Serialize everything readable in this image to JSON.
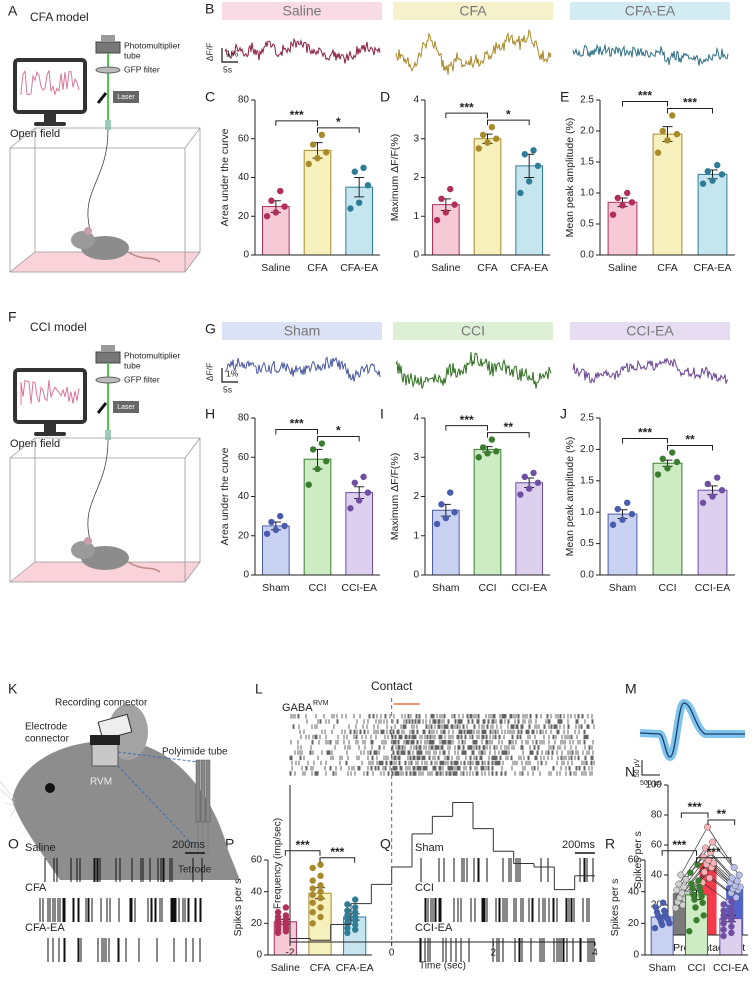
{
  "panel_letters": [
    "A",
    "B",
    "C",
    "D",
    "E",
    "F",
    "G",
    "H",
    "I",
    "J",
    "K",
    "L",
    "M",
    "N",
    "O",
    "P",
    "Q",
    "R"
  ],
  "diagrams": {
    "A": {
      "title": "CFA model",
      "pmt": [
        "Photomultiplier",
        "tube"
      ],
      "filter": "GFP filter",
      "laser": "Laser",
      "arena": "Open field"
    },
    "F": {
      "title": "CCI model",
      "pmt": [
        "Photomultiplier",
        "tube"
      ],
      "filter": "GFP filter",
      "laser": "Laser",
      "arena": "Open field"
    },
    "K": {
      "recording": "Recording connector",
      "electrode": [
        "Electrode",
        "connector"
      ],
      "tube": "Polyimide tube",
      "region": "RVM",
      "tetrode": "Tetrode"
    },
    "M": {
      "amplitude": "50 μV",
      "duration": "500 μs"
    }
  },
  "traces": {
    "B": {
      "ylabel": "ΔF/F",
      "scale_y": "1%",
      "scale_x": "5s",
      "groups": [
        {
          "name": "Saline",
          "color": "#8b1d3f",
          "band": "#f8dbe5"
        },
        {
          "name": "CFA",
          "color": "#a8892a",
          "band": "#f4f1cb"
        },
        {
          "name": "CFA-EA",
          "color": "#2f6f86",
          "band": "#d3ecf3"
        }
      ]
    },
    "G": {
      "ylabel": "ΔF/F",
      "scale_y": "1%",
      "scale_x": "5s",
      "groups": [
        {
          "name": "Sham",
          "color": "#4a58a0",
          "band": "#dce2f5"
        },
        {
          "name": "CCI",
          "color": "#2f6e1f",
          "band": "#ddf0d5"
        },
        {
          "name": "CCI-EA",
          "color": "#6b4596",
          "band": "#e6ddf3"
        }
      ]
    }
  },
  "rasters": {
    "O": {
      "rows": [
        "Saline",
        "CFA",
        "CFA-EA"
      ],
      "scale": "200ms"
    },
    "Q": {
      "rows": [
        "Sham",
        "CCI",
        "CCI-EA"
      ],
      "scale": "200ms"
    }
  },
  "chart_data": [
    {
      "type": "bar",
      "ylabel": "Area under the curve",
      "categories": [
        "Saline",
        "CFA",
        "CFA-EA"
      ],
      "values": [
        25,
        54,
        35
      ],
      "errors": [
        3,
        4,
        5
      ],
      "points": [
        [
          20,
          22,
          25,
          28,
          33
        ],
        [
          47,
          50,
          53,
          57,
          62
        ],
        [
          24,
          27,
          36,
          43,
          45
        ]
      ],
      "bar_colors": [
        "#f6c9d6",
        "#f6f0bd",
        "#c6e6ef"
      ],
      "point_colors": [
        "#b0305a",
        "#a88a2a",
        "#2f7c96"
      ],
      "ylim": [
        0,
        80
      ],
      "yticks": [
        0,
        20,
        40,
        60,
        80
      ],
      "significance": [
        "***",
        "*"
      ]
    },
    {
      "type": "bar",
      "ylabel": "Maximum ΔF/F(%)",
      "categories": [
        "Saline",
        "CFA",
        "CFA-EA"
      ],
      "values": [
        1.3,
        3.0,
        2.3
      ],
      "errors": [
        0.15,
        0.12,
        0.3
      ],
      "points": [
        [
          0.9,
          1.1,
          1.3,
          1.45,
          1.7
        ],
        [
          2.75,
          2.9,
          3.0,
          3.1,
          3.3
        ],
        [
          1.6,
          1.9,
          2.3,
          2.6,
          2.7
        ]
      ],
      "bar_colors": [
        "#f6c9d6",
        "#f6f0bd",
        "#c6e6ef"
      ],
      "point_colors": [
        "#b0305a",
        "#a88a2a",
        "#2f7c96"
      ],
      "ylim": [
        0,
        4
      ],
      "yticks": [
        0,
        1,
        2,
        3,
        4
      ],
      "significance": [
        "***",
        "*"
      ]
    },
    {
      "type": "bar",
      "ylabel": "Mean peak amplitude (%)",
      "categories": [
        "Saline",
        "CFA",
        "CFA-EA"
      ],
      "values": [
        0.85,
        1.95,
        1.3
      ],
      "errors": [
        0.07,
        0.12,
        0.07
      ],
      "points": [
        [
          0.65,
          0.8,
          0.85,
          0.92,
          1.0
        ],
        [
          1.65,
          1.85,
          1.95,
          2.0,
          2.25
        ],
        [
          1.15,
          1.2,
          1.3,
          1.35,
          1.45
        ]
      ],
      "bar_colors": [
        "#f6c9d6",
        "#f6f0bd",
        "#c6e6ef"
      ],
      "point_colors": [
        "#b0305a",
        "#a88a2a",
        "#2f7c96"
      ],
      "ylim": [
        0,
        2.5
      ],
      "yticks": [
        {
          "value": 0,
          "label": "0.0"
        },
        0.5,
        {
          "value": 1,
          "label": "1.0"
        },
        1.5,
        {
          "value": 2,
          "label": "2.0"
        },
        2.5
      ],
      "significance": [
        "***",
        "***"
      ]
    },
    {
      "type": "bar",
      "ylabel": "Area under the curve",
      "categories": [
        "Sham",
        "CCI",
        "CCI-EA"
      ],
      "values": [
        25,
        59,
        42
      ],
      "errors": [
        2,
        5,
        3
      ],
      "points": [
        [
          21,
          23,
          25,
          27,
          30
        ],
        [
          46,
          54,
          58,
          64,
          67
        ],
        [
          34,
          38,
          42,
          47,
          50
        ]
      ],
      "bar_colors": [
        "#c9d2f1",
        "#cdecc4",
        "#ddd0ef"
      ],
      "point_colors": [
        "#4a5cad",
        "#3a7d2e",
        "#6f4fa3"
      ],
      "ylim": [
        0,
        80
      ],
      "yticks": [
        0,
        20,
        40,
        60,
        80
      ],
      "significance": [
        "***",
        "*"
      ]
    },
    {
      "type": "bar",
      "ylabel": "Maximum ΔF/F(%)",
      "categories": [
        "Sham",
        "CCI",
        "CCI-EA"
      ],
      "values": [
        1.65,
        3.2,
        2.35
      ],
      "errors": [
        0.15,
        0.07,
        0.12
      ],
      "points": [
        [
          1.3,
          1.45,
          1.6,
          1.8,
          2.1
        ],
        [
          3.0,
          3.1,
          3.15,
          3.25,
          3.45
        ],
        [
          2.05,
          2.2,
          2.35,
          2.5,
          2.6
        ]
      ],
      "bar_colors": [
        "#c9d2f1",
        "#cdecc4",
        "#ddd0ef"
      ],
      "point_colors": [
        "#4a5cad",
        "#3a7d2e",
        "#6f4fa3"
      ],
      "ylim": [
        0,
        4
      ],
      "yticks": [
        0,
        1,
        2,
        3,
        4
      ],
      "significance": [
        "***",
        "**"
      ]
    },
    {
      "type": "bar",
      "ylabel": "Mean peak amplitude (%)",
      "categories": [
        "Sham",
        "CCI",
        "CCI-EA"
      ],
      "values": [
        0.97,
        1.78,
        1.35
      ],
      "errors": [
        0.07,
        0.05,
        0.07
      ],
      "points": [
        [
          0.8,
          0.88,
          0.97,
          1.05,
          1.15
        ],
        [
          1.6,
          1.7,
          1.8,
          1.85,
          1.95
        ],
        [
          1.15,
          1.25,
          1.35,
          1.45,
          1.55
        ]
      ],
      "bar_colors": [
        "#c9d2f1",
        "#cdecc4",
        "#ddd0ef"
      ],
      "point_colors": [
        "#4a5cad",
        "#3a7d2e",
        "#6f4fa3"
      ],
      "ylim": [
        0,
        2.5
      ],
      "yticks": [
        {
          "value": 0,
          "label": "0.0"
        },
        0.5,
        {
          "value": 1,
          "label": "1.0"
        },
        1.5,
        {
          "value": 2,
          "label": "2.0"
        },
        2.5
      ],
      "significance": [
        "***",
        "**"
      ]
    },
    {
      "type": "bar",
      "paired": true,
      "ylabel": "Spikes per s",
      "categories": [
        "Pre",
        "Contact",
        "Post"
      ],
      "values": [
        28,
        48,
        33
      ],
      "errors": [
        2,
        3,
        2
      ],
      "points": [
        [
          18,
          20,
          22,
          24,
          25,
          27,
          28,
          30,
          32,
          34,
          37,
          40
        ],
        [
          35,
          38,
          42,
          45,
          47,
          48,
          50,
          52,
          55,
          58,
          62,
          72
        ],
        [
          22,
          25,
          28,
          30,
          31,
          32,
          33,
          35,
          36,
          38,
          40,
          45
        ]
      ],
      "bar_colors": [
        "#7a7a7a",
        "#f53b4b",
        "#5264c9"
      ],
      "point_colors": [
        "#d0d0d0",
        "#ffb0b6",
        "#b8c0ee"
      ],
      "ylim": [
        0,
        100
      ],
      "yticks": [
        0,
        20,
        40,
        60,
        80,
        100
      ],
      "significance": [
        "***",
        "**"
      ]
    },
    {
      "type": "bar",
      "ylabel": "Spikes per s",
      "categories": [
        "Saline",
        "CFA",
        "CFA-EA"
      ],
      "values": [
        21,
        39,
        24
      ],
      "errors": [
        1.5,
        3.5,
        2
      ],
      "points": [
        [
          14,
          15,
          16,
          17,
          18,
          19,
          20,
          21,
          22,
          23,
          24,
          25,
          27,
          30
        ],
        [
          20,
          24,
          27,
          30,
          33,
          36,
          38,
          40,
          42,
          44,
          47,
          50,
          55,
          57
        ],
        [
          14,
          16,
          17,
          19,
          20,
          22,
          23,
          24,
          25,
          27,
          28,
          30,
          32,
          35
        ]
      ],
      "bar_colors": [
        "#f6c9d6",
        "#f6f0bd",
        "#c6e6ef"
      ],
      "point_colors": [
        "#b0305a",
        "#a88a2a",
        "#2f7c96"
      ],
      "ylim": [
        0,
        60
      ],
      "yticks": [
        0,
        20,
        40,
        60
      ],
      "significance": [
        "***",
        "***"
      ]
    },
    {
      "type": "bar",
      "ylabel": "Spikes per s",
      "categories": [
        "Sham",
        "CCI",
        "CCI-EA"
      ],
      "values": [
        24,
        38,
        23
      ],
      "errors": [
        1,
        3,
        2
      ],
      "points": [
        [
          17,
          19,
          20,
          21,
          22,
          23,
          23,
          24,
          24,
          25,
          26,
          27,
          28,
          30,
          33
        ],
        [
          15,
          22,
          25,
          30,
          33,
          35,
          37,
          38,
          40,
          42,
          43,
          45,
          47,
          52,
          57
        ],
        [
          12,
          14,
          16,
          18,
          20,
          22,
          23,
          24,
          25,
          27,
          28,
          30,
          32,
          34
        ]
      ],
      "bar_colors": [
        "#c9d2f1",
        "#cdecc4",
        "#ddd0ef"
      ],
      "point_colors": [
        "#4a5cad",
        "#3a7d2e",
        "#6f4fa3"
      ],
      "ylim": [
        0,
        60
      ],
      "yticks": [
        0,
        20,
        40,
        60
      ],
      "significance": [
        "***",
        "***"
      ]
    },
    {
      "type": "histogram",
      "title": "GABA",
      "title_sup": "RVM",
      "xlabel": "Time (sec)",
      "ylabel": "Frequency (imp/sec)",
      "bins": [
        -2,
        -1.6,
        -1.2,
        -0.8,
        -0.4,
        0,
        0.4,
        0.8,
        1.2,
        1.6,
        2,
        2.4,
        2.8,
        3.2,
        3.6,
        4
      ],
      "values": [
        2,
        1,
        10,
        22,
        33,
        43,
        62,
        72,
        80,
        65,
        52,
        45,
        43,
        30,
        38
      ],
      "xlim": [
        -2,
        4
      ],
      "ylim": [
        0,
        90
      ],
      "xticks": [
        -2,
        0,
        2,
        4
      ],
      "color": "#333333",
      "marker": {
        "label": "Contact",
        "x": 0
      }
    }
  ]
}
